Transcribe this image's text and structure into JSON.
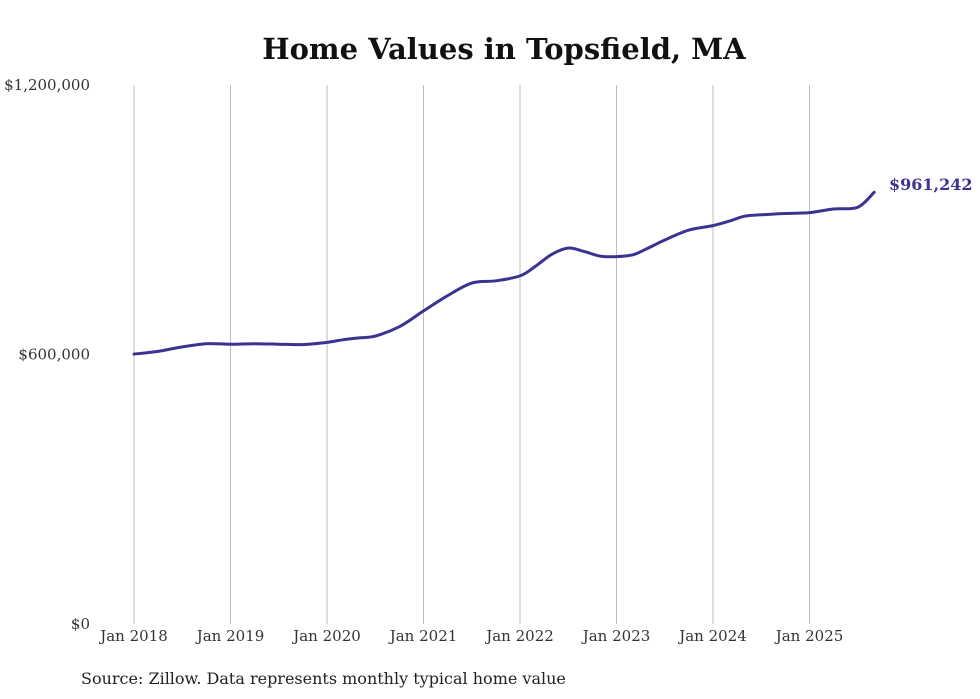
{
  "chart_data": {
    "type": "line",
    "title": "Home Values in Topsfield, MA",
    "xlabel": "",
    "ylabel": "",
    "ylim": [
      0,
      1200000
    ],
    "xlim": [
      2018.0,
      2026.0
    ],
    "y_ticks": [
      {
        "value": 0,
        "label": "$0"
      },
      {
        "value": 600000,
        "label": "$600,000"
      },
      {
        "value": 1200000,
        "label": "$1,200,000"
      }
    ],
    "x_ticks": [
      {
        "value": 2018,
        "label": "Jan 2018"
      },
      {
        "value": 2019,
        "label": "Jan 2019"
      },
      {
        "value": 2020,
        "label": "Jan 2020"
      },
      {
        "value": 2021,
        "label": "Jan 2021"
      },
      {
        "value": 2022,
        "label": "Jan 2022"
      },
      {
        "value": 2023,
        "label": "Jan 2023"
      },
      {
        "value": 2024,
        "label": "Jan 2024"
      },
      {
        "value": 2025,
        "label": "Jan 2025"
      }
    ],
    "grid": "vertical",
    "series": [
      {
        "name": "Typical home value",
        "color": "#3b3391",
        "x": [
          2018.0,
          2018.25,
          2018.5,
          2018.75,
          2019.0,
          2019.25,
          2019.5,
          2019.75,
          2020.0,
          2020.17,
          2020.33,
          2020.5,
          2020.75,
          2021.0,
          2021.25,
          2021.5,
          2021.75,
          2022.0,
          2022.17,
          2022.33,
          2022.5,
          2022.67,
          2022.83,
          2023.0,
          2023.17,
          2023.33,
          2023.5,
          2023.75,
          2024.0,
          2024.17,
          2024.33,
          2024.5,
          2024.75,
          2025.0,
          2025.25,
          2025.5,
          2025.67
        ],
        "values": [
          601000,
          607000,
          617000,
          624000,
          623000,
          624000,
          623000,
          622000,
          627000,
          633000,
          637000,
          641000,
          662000,
          697000,
          731000,
          759000,
          764000,
          775000,
          798000,
          823000,
          837000,
          829000,
          819000,
          818000,
          822000,
          837000,
          855000,
          877000,
          887000,
          897000,
          908000,
          911000,
          914000,
          916000,
          924000,
          928000,
          961242
        ]
      }
    ],
    "end_label": "$961,242",
    "source": "Source: Zillow. Data represents monthly typical home value"
  }
}
